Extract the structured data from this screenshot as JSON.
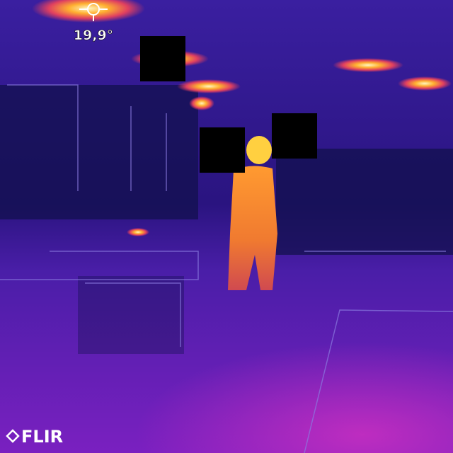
{
  "spot_temperature": "19,9°",
  "brand": "FLIR"
}
